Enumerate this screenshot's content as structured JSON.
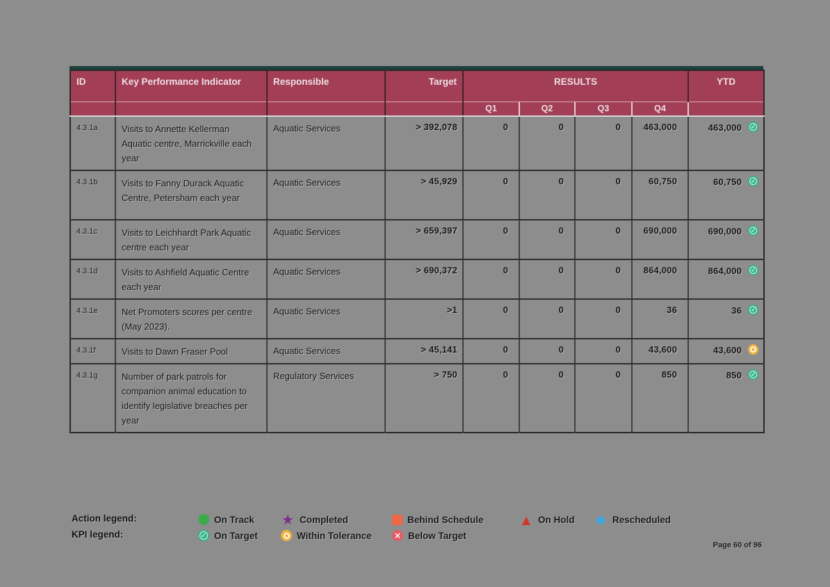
{
  "page": {
    "background_color": "#8d8d8d",
    "page_label": "Page 60 of 96"
  },
  "table": {
    "header_bg": "#a23f56",
    "top_border_color": "#1d403c",
    "headers": {
      "id": "ID",
      "kpi": "Key Performance Indicator",
      "responsible": "Responsible",
      "target": "Target",
      "results": "RESULTS",
      "ytd": "YTD"
    },
    "quarter_headers": [
      "Q1",
      "Q2",
      "Q3",
      "Q4"
    ],
    "status_colors": {
      "on-target": "#2eb189",
      "within-tolerance": "#f2b23a"
    },
    "rows": [
      {
        "id": "4.3.1a",
        "kpi": "Visits to Annette Kellerman Aquatic centre, Marrickville each year",
        "responsible": "Aquatic Services",
        "target": "> 392,078",
        "q1": "0",
        "q2": "0",
        "q3": "0",
        "q4": "463,000",
        "ytd": "463,000",
        "status": "on-target"
      },
      {
        "id": "4.3.1b",
        "kpi": "Visits to Fanny Durack Aquatic Centre, Petersham each year",
        "responsible": "Aquatic Services",
        "target": "> 45,929",
        "q1": "0",
        "q2": "0",
        "q3": "0",
        "q4": "60,750",
        "ytd": "60,750",
        "status": "on-target"
      },
      {
        "id": "4.3.1c",
        "kpi": "Visits to Leichhardt Park Aquatic centre each year",
        "responsible": "Aquatic Services",
        "target": "> 659,397",
        "q1": "0",
        "q2": "0",
        "q3": "0",
        "q4": "690,000",
        "ytd": "690,000",
        "status": "on-target"
      },
      {
        "id": "4.3.1d",
        "kpi": "Visits to Ashfield Aquatic Centre each year",
        "responsible": "Aquatic Services",
        "target": "> 690,372",
        "q1": "0",
        "q2": "0",
        "q3": "0",
        "q4": "864,000",
        "ytd": "864,000",
        "status": "on-target"
      },
      {
        "id": "4.3.1e",
        "kpi": "Net Promoters scores per centre (May 2023).",
        "responsible": "Aquatic Services",
        "target": ">1",
        "q1": "0",
        "q2": "0",
        "q3": "0",
        "q4": "36",
        "ytd": "36",
        "status": "on-target"
      },
      {
        "id": "4.3.1f",
        "kpi": "Visits to Dawn Fraser Pool",
        "responsible": "Aquatic Services",
        "target": "> 45,141",
        "q1": "0",
        "q2": "0",
        "q3": "0",
        "q4": "43,600",
        "ytd": "43,600",
        "status": "within-tolerance"
      },
      {
        "id": "4.3.1g",
        "kpi": "Number of park patrols for companion animal education to identify legislative breaches per year",
        "responsible": "Regulatory Services",
        "target": "> 750",
        "q1": "0",
        "q2": "0",
        "q3": "0",
        "q4": "850",
        "ytd": "850",
        "status": "on-target"
      }
    ]
  },
  "legend": {
    "action_label": "Action legend:",
    "kpi_label": "KPI legend:",
    "action_items": [
      {
        "label": "On Track",
        "icon": "circle",
        "color": "#3fa94d"
      },
      {
        "label": "Completed",
        "icon": "star",
        "color": "#7b2e8a"
      },
      {
        "label": "Behind Schedule",
        "icon": "square",
        "color": "#ef6744"
      },
      {
        "label": "On Hold",
        "icon": "triangle",
        "color": "#cf362c"
      },
      {
        "label": "Rescheduled",
        "icon": "diamond",
        "color": "#3fa8e0"
      }
    ],
    "kpi_items": [
      {
        "label": "On Target",
        "icon": "check-circle",
        "color": "#2eb189"
      },
      {
        "label": "Within Tolerance",
        "icon": "ring-circle",
        "color": "#f2b23a"
      },
      {
        "label": "Below Target",
        "icon": "x-circle",
        "color": "#e25c66"
      }
    ]
  }
}
